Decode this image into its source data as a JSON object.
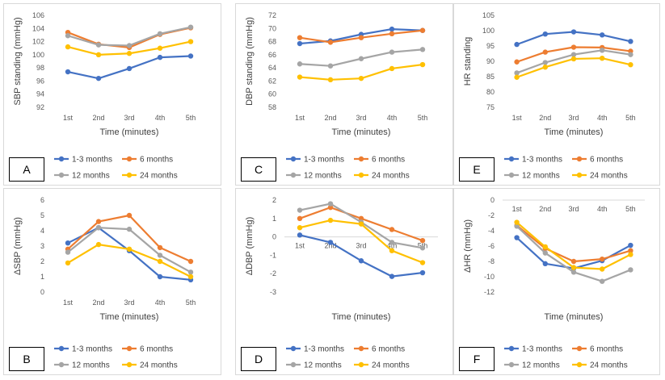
{
  "colors": {
    "1-3 months": "#4472C4",
    "6 months": "#ED7D31",
    "12 months": "#A5A5A5",
    "24 months": "#FFC000",
    "zero_line": "#d9d9d9",
    "text": "#595959"
  },
  "chart_data": [
    {
      "panel": "A",
      "type": "line",
      "categories": [
        "1st",
        "2nd",
        "3rd",
        "4th",
        "5th"
      ],
      "xlabel": "Time (minutes)",
      "ylabel": "SBP standing (mmHg)",
      "ylim": [
        92,
        106
      ],
      "yticks": [
        92,
        94,
        96,
        98,
        100,
        102,
        104,
        106
      ],
      "x_axis_at_zero": false,
      "grid": false,
      "legend": "bottom",
      "series": [
        {
          "name": "1-3 months",
          "values": [
            97.4,
            96.4,
            97.9,
            99.6,
            99.8
          ]
        },
        {
          "name": "6 months",
          "values": [
            103.4,
            101.6,
            101.1,
            103.1,
            104.1
          ]
        },
        {
          "name": "12 months",
          "values": [
            102.9,
            101.5,
            101.4,
            103.2,
            104.2
          ]
        },
        {
          "name": "24 months",
          "values": [
            101.2,
            100.0,
            100.2,
            101.0,
            102.0
          ]
        }
      ]
    },
    {
      "panel": "C",
      "type": "line",
      "categories": [
        "1st",
        "2nd",
        "3rd",
        "4th",
        "5th"
      ],
      "xlabel": "Time (minutes)",
      "ylabel": "DBP standing (mmHg)",
      "ylim": [
        58,
        72
      ],
      "yticks": [
        58,
        60,
        62,
        64,
        66,
        68,
        70,
        72
      ],
      "x_axis_at_zero": false,
      "grid": false,
      "legend": "bottom",
      "series": [
        {
          "name": "1-3 months",
          "values": [
            67.7,
            68.1,
            69.1,
            69.9,
            69.7
          ]
        },
        {
          "name": "6 months",
          "values": [
            68.6,
            67.9,
            68.6,
            69.2,
            69.7
          ]
        },
        {
          "name": "12 months",
          "values": [
            64.6,
            64.3,
            65.4,
            66.4,
            66.8
          ]
        },
        {
          "name": "24 months",
          "values": [
            62.6,
            62.2,
            62.4,
            63.9,
            64.5
          ]
        }
      ]
    },
    {
      "panel": "E",
      "type": "line",
      "categories": [
        "1st",
        "2nd",
        "3rd",
        "4th",
        "5th"
      ],
      "xlabel": "Time (minutes)",
      "ylabel": "HR standing",
      "ylim": [
        75,
        105
      ],
      "yticks": [
        75,
        80,
        85,
        90,
        95,
        100,
        105
      ],
      "x_axis_at_zero": false,
      "grid": false,
      "legend": "bottom",
      "series": [
        {
          "name": "1-3 months",
          "values": [
            95.5,
            98.9,
            99.6,
            98.6,
            96.5
          ]
        },
        {
          "name": "6 months",
          "values": [
            89.8,
            93.0,
            94.6,
            94.5,
            93.3
          ]
        },
        {
          "name": "12 months",
          "values": [
            86.2,
            89.6,
            92.2,
            93.6,
            92.2
          ]
        },
        {
          "name": "24 months",
          "values": [
            84.8,
            88.1,
            90.8,
            91.0,
            88.9
          ]
        }
      ]
    },
    {
      "panel": "B",
      "type": "line",
      "categories": [
        "1st",
        "2nd",
        "3rd",
        "4th",
        "5th"
      ],
      "xlabel": "Time (minutes)",
      "ylabel": "ΔSBP (mmHg)",
      "ylim": [
        0,
        6
      ],
      "yticks": [
        0,
        1,
        2,
        3,
        4,
        5,
        6
      ],
      "x_axis_at_zero": false,
      "grid": false,
      "legend": "bottom",
      "series": [
        {
          "name": "1-3 months",
          "values": [
            3.2,
            4.2,
            2.7,
            1.0,
            0.8
          ]
        },
        {
          "name": "6 months",
          "values": [
            2.8,
            4.6,
            5.0,
            2.9,
            2.0
          ]
        },
        {
          "name": "12 months",
          "values": [
            2.6,
            4.2,
            4.1,
            2.4,
            1.3
          ]
        },
        {
          "name": "24 months",
          "values": [
            1.9,
            3.1,
            2.8,
            2.0,
            1.0
          ]
        }
      ]
    },
    {
      "panel": "D",
      "type": "line",
      "categories": [
        "1st",
        "2nd",
        "3rd",
        "4th",
        "5th"
      ],
      "xlabel": "Time (minutes)",
      "ylabel": "ΔDBP (mmHg)",
      "ylim": [
        -3,
        2
      ],
      "yticks": [
        -3,
        -2,
        -1,
        0,
        1,
        2
      ],
      "x_axis_at_zero": true,
      "grid": false,
      "legend": "bottom",
      "series": [
        {
          "name": "1-3 months",
          "values": [
            0.1,
            -0.3,
            -1.3,
            -2.15,
            -1.95
          ]
        },
        {
          "name": "6 months",
          "values": [
            1.0,
            1.6,
            1.0,
            0.4,
            -0.2
          ]
        },
        {
          "name": "12 months",
          "values": [
            1.45,
            1.8,
            0.8,
            -0.3,
            -0.6
          ]
        },
        {
          "name": "24 months",
          "values": [
            0.5,
            0.9,
            0.7,
            -0.75,
            -1.4
          ]
        }
      ]
    },
    {
      "panel": "F",
      "type": "line",
      "categories": [
        "1st",
        "2nd",
        "3rd",
        "4th",
        "5th"
      ],
      "xlabel": "Time (minutes)",
      "ylabel": "ΔHR (mmHg)",
      "ylim": [
        -12,
        0
      ],
      "yticks": [
        -12,
        -10,
        -8,
        -6,
        -4,
        -2,
        0
      ],
      "x_axis_at_zero": true,
      "grid": false,
      "legend": "bottom",
      "series": [
        {
          "name": "1-3 months",
          "values": [
            -4.9,
            -8.3,
            -8.9,
            -7.9,
            -5.9
          ]
        },
        {
          "name": "6 months",
          "values": [
            -3.3,
            -6.3,
            -8.0,
            -7.7,
            -6.6
          ]
        },
        {
          "name": "12 months",
          "values": [
            -3.4,
            -6.9,
            -9.4,
            -10.6,
            -9.1
          ]
        },
        {
          "name": "24 months",
          "values": [
            -2.9,
            -6.1,
            -8.8,
            -9.0,
            -7.1
          ]
        }
      ]
    }
  ]
}
